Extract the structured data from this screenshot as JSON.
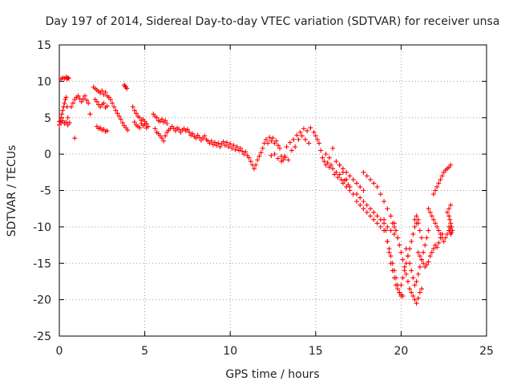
{
  "chart_data": {
    "type": "scatter",
    "title": "Day 197 of 2014, Sidereal Day-to-day VTEC variation (SDTVAR) for receiver unsa",
    "xlabel": "GPS time / hours",
    "ylabel": "SDTVAR / TECUs",
    "xlim": [
      0,
      25
    ],
    "ylim": [
      -25,
      15
    ],
    "xticks": [
      0,
      5,
      10,
      15,
      20,
      25
    ],
    "yticks": [
      -25,
      -20,
      -15,
      -10,
      -5,
      0,
      5,
      10,
      15
    ],
    "xtick_labels": [
      "0",
      "5",
      "10",
      "15",
      "20",
      "25"
    ],
    "ytick_labels": [
      "-25",
      "-20",
      "-15",
      "-10",
      "-5",
      "0",
      "5",
      "10",
      "15"
    ],
    "grid": true,
    "marker": "+",
    "color": "#ff0000",
    "series": [
      {
        "name": "SDTVAR",
        "x": [
          0.0,
          0.05,
          0.1,
          0.15,
          0.2,
          0.25,
          0.3,
          0.35,
          0.4,
          0.45,
          0.5,
          0.1,
          0.2,
          0.3,
          0.4,
          0.45,
          0.5,
          0.55,
          0.0,
          0.1,
          0.2,
          0.3,
          0.4,
          0.5,
          0.6,
          0.7,
          0.8,
          0.9,
          1.0,
          1.1,
          1.2,
          1.3,
          1.4,
          1.5,
          1.6,
          1.7,
          1.8,
          0.9,
          2.0,
          2.1,
          2.2,
          2.3,
          2.4,
          2.5,
          2.6,
          2.7,
          2.8,
          2.9,
          2.1,
          2.2,
          2.3,
          2.4,
          2.5,
          2.6,
          2.7,
          2.8,
          2.2,
          2.3,
          2.4,
          2.5,
          2.6,
          2.7,
          2.8,
          3.0,
          3.1,
          3.2,
          3.3,
          3.4,
          3.5,
          3.6,
          3.7,
          3.8,
          3.9,
          4.0,
          3.8,
          3.85,
          3.9,
          3.95,
          4.3,
          4.4,
          4.5,
          4.6,
          4.7,
          4.8,
          4.9,
          5.0,
          5.1,
          4.4,
          4.5,
          4.6,
          4.7,
          4.8,
          4.9,
          5.0,
          5.1,
          5.2,
          5.5,
          5.6,
          5.7,
          5.8,
          5.9,
          6.0,
          6.1,
          6.2,
          6.3,
          5.6,
          5.7,
          5.8,
          5.9,
          6.0,
          6.1,
          6.2,
          6.3,
          6.4,
          6.5,
          6.6,
          6.7,
          6.8,
          6.9,
          7.0,
          7.1,
          7.2,
          7.3,
          7.4,
          7.5,
          7.6,
          7.7,
          7.8,
          7.9,
          8.0,
          8.1,
          8.2,
          8.3,
          8.4,
          8.5,
          8.6,
          8.7,
          8.8,
          8.9,
          9.0,
          9.1,
          9.2,
          9.3,
          9.4,
          9.5,
          9.6,
          9.7,
          9.8,
          9.9,
          10.0,
          10.1,
          10.2,
          10.3,
          10.4,
          10.5,
          10.6,
          10.7,
          10.8,
          10.9,
          11.0,
          11.1,
          11.2,
          11.3,
          11.4,
          11.5,
          11.6,
          11.7,
          11.8,
          11.9,
          12.0,
          12.1,
          12.2,
          12.3,
          12.4,
          12.5,
          12.6,
          12.7,
          12.8,
          12.9,
          13.0,
          13.1,
          13.2,
          12.4,
          12.6,
          12.8,
          13.0,
          13.2,
          13.4,
          13.6,
          13.8,
          14.0,
          14.2,
          14.4,
          14.6,
          13.3,
          13.5,
          13.7,
          13.9,
          14.1,
          14.3,
          14.5,
          14.7,
          14.9,
          15.0,
          15.1,
          15.2,
          15.3,
          15.4,
          15.5,
          15.6,
          15.7,
          15.8,
          15.9,
          16.0,
          16.1,
          16.2,
          16.3,
          16.4,
          16.5,
          16.6,
          16.7,
          16.8,
          16.9,
          17.0,
          15.6,
          15.8,
          16.0,
          16.2,
          16.4,
          16.6,
          16.8,
          17.0,
          17.2,
          17.4,
          17.6,
          17.8,
          16.4,
          16.6,
          16.8,
          17.0,
          17.2,
          17.4,
          17.6,
          17.8,
          18.0,
          18.2,
          18.4,
          18.6,
          18.8,
          19.0,
          17.8,
          18.0,
          18.2,
          18.4,
          18.6,
          18.8,
          19.0,
          19.2,
          19.4,
          19.6,
          17.4,
          17.6,
          17.8,
          18.0,
          18.2,
          18.4,
          18.6,
          18.8,
          19.0,
          19.2,
          19.4,
          19.6,
          19.8,
          19.0,
          19.1,
          19.2,
          19.3,
          19.4,
          19.5,
          19.6,
          19.7,
          19.8,
          19.9,
          20.0,
          19.2,
          19.3,
          19.4,
          19.5,
          19.6,
          19.7,
          19.8,
          19.9,
          20.0,
          20.1,
          19.5,
          19.6,
          19.7,
          19.8,
          19.9,
          20.0,
          20.1,
          20.2,
          20.3,
          20.4,
          20.5,
          20.6,
          20.7,
          20.8,
          20.9,
          21.0,
          21.1,
          21.2,
          21.0,
          20.9,
          20.8,
          20.7,
          20.6,
          20.5,
          20.4,
          20.3,
          20.2,
          20.1,
          20.0,
          21.0,
          21.1,
          21.2,
          21.3,
          21.4,
          21.5,
          21.6,
          21.7,
          21.8,
          21.9,
          22.0,
          22.1,
          22.2,
          22.3,
          22.4,
          21.6,
          21.7,
          21.8,
          21.9,
          22.0,
          22.1,
          22.2,
          22.3,
          22.4,
          22.5,
          22.6,
          22.7,
          22.8,
          22.9,
          21.9,
          22.0,
          22.1,
          22.2,
          22.3,
          22.4,
          22.5,
          22.6,
          22.7,
          22.8,
          22.9,
          22.8,
          22.85,
          22.9,
          22.95,
          22.8,
          22.85,
          22.9,
          22.95,
          23.0,
          22.7,
          22.8,
          22.9,
          20.3,
          20.4,
          20.5,
          20.6,
          20.7,
          20.8,
          20.9,
          21.0,
          21.1,
          21.2,
          21.3,
          21.4,
          21.5,
          21.6,
          20.8,
          20.9,
          21.0,
          21.1,
          21.2
        ],
        "y": [
          4.0,
          4.5,
          5.0,
          5.5,
          6.0,
          6.5,
          7.0,
          7.5,
          7.8,
          6.5,
          5.0,
          10.3,
          10.5,
          10.4,
          10.6,
          10.3,
          10.5,
          10.4,
          4.5,
          4.3,
          4.6,
          4.2,
          4.4,
          4.0,
          4.3,
          6.5,
          7.0,
          7.5,
          7.8,
          8.0,
          7.6,
          7.2,
          7.6,
          8.0,
          7.4,
          7.0,
          5.5,
          2.2,
          9.2,
          9.0,
          8.8,
          8.6,
          8.4,
          8.7,
          8.2,
          8.5,
          8.0,
          7.8,
          7.5,
          7.2,
          6.8,
          6.5,
          6.8,
          7.0,
          6.4,
          6.6,
          3.8,
          3.5,
          3.6,
          3.3,
          3.4,
          3.1,
          3.2,
          7.5,
          7.0,
          6.5,
          6.0,
          5.6,
          5.2,
          4.8,
          4.3,
          3.9,
          3.6,
          3.3,
          9.5,
          9.3,
          9.2,
          9.0,
          6.5,
          6.0,
          5.6,
          5.2,
          5.0,
          4.6,
          4.8,
          4.5,
          4.2,
          4.4,
          4.0,
          3.8,
          3.6,
          4.2,
          3.9,
          4.1,
          3.6,
          3.8,
          5.5,
          5.2,
          5.0,
          4.6,
          4.5,
          4.8,
          4.4,
          4.6,
          4.2,
          3.5,
          3.0,
          2.8,
          2.5,
          2.2,
          1.8,
          2.5,
          3.0,
          3.3,
          3.5,
          3.8,
          3.5,
          3.2,
          3.6,
          3.4,
          3.0,
          3.3,
          3.5,
          3.2,
          3.4,
          3.0,
          2.6,
          2.8,
          2.4,
          2.2,
          2.6,
          2.3,
          1.9,
          2.2,
          2.5,
          2.0,
          1.8,
          1.5,
          1.8,
          1.3,
          1.6,
          1.2,
          1.5,
          1.0,
          1.4,
          1.7,
          1.2,
          1.6,
          1.0,
          1.4,
          0.8,
          1.2,
          0.6,
          1.0,
          0.5,
          0.8,
          0.4,
          0.0,
          0.3,
          -0.2,
          -0.5,
          -1.0,
          -1.5,
          -2.0,
          -1.5,
          -0.8,
          -0.3,
          0.2,
          0.8,
          1.5,
          2.0,
          1.5,
          2.3,
          1.8,
          2.2,
          1.5,
          1.8,
          1.2,
          0.8,
          -0.3,
          -0.8,
          -0.5,
          -0.2,
          0.0,
          -0.6,
          -1.0,
          -0.3,
          -0.8,
          0.5,
          1.0,
          2.0,
          2.5,
          2.0,
          1.5,
          1.0,
          1.6,
          2.0,
          2.6,
          3.0,
          3.5,
          3.2,
          3.6,
          3.0,
          2.5,
          2.0,
          1.5,
          0.5,
          -0.5,
          -1.0,
          -1.5,
          -1.2,
          -1.8,
          -1.5,
          -2.0,
          -2.8,
          -2.5,
          -3.2,
          -2.8,
          -3.5,
          -4.0,
          -3.6,
          -4.5,
          -4.2,
          -5.0,
          0.0,
          -0.5,
          0.8,
          -1.0,
          -1.5,
          -2.0,
          -2.5,
          -3.0,
          -3.5,
          -4.0,
          -4.5,
          -5.0,
          -1.5,
          -2.5,
          -3.5,
          -4.5,
          -5.5,
          -6.5,
          -7.0,
          -7.5,
          -8.0,
          -8.5,
          -9.0,
          -9.5,
          -10.0,
          -10.5,
          -2.5,
          -3.0,
          -3.5,
          -4.0,
          -4.5,
          -5.5,
          -6.5,
          -7.5,
          -8.5,
          -9.5,
          -5.5,
          -6.0,
          -6.5,
          -7.0,
          -7.5,
          -8.0,
          -8.5,
          -9.0,
          -9.5,
          -10.0,
          -10.5,
          -11.0,
          -11.5,
          -9.0,
          -10.5,
          -12.0,
          -13.5,
          -15.0,
          -16.0,
          -17.0,
          -18.0,
          -18.5,
          -19.0,
          -19.5,
          -12.0,
          -13.0,
          -14.0,
          -15.0,
          -16.0,
          -17.0,
          -18.0,
          -19.0,
          -19.3,
          -19.5,
          -9.5,
          -10.0,
          -10.5,
          -11.5,
          -12.5,
          -13.5,
          -14.5,
          -15.5,
          -16.5,
          -17.5,
          -18.5,
          -19.0,
          -19.5,
          -20.0,
          -20.5,
          -19.8,
          -19.0,
          -18.5,
          -9.0,
          -9.5,
          -10.0,
          -11.0,
          -12.0,
          -13.0,
          -14.0,
          -15.0,
          -16.0,
          -17.0,
          -18.0,
          -13.5,
          -14.0,
          -14.5,
          -15.0,
          -15.5,
          -15.2,
          -14.8,
          -14.0,
          -13.5,
          -13.0,
          -12.5,
          -12.8,
          -12.2,
          -11.5,
          -11.0,
          -7.5,
          -8.0,
          -8.5,
          -9.0,
          -9.5,
          -10.0,
          -10.5,
          -11.0,
          -11.5,
          -12.0,
          -11.5,
          -11.0,
          -10.5,
          -10.0,
          -5.5,
          -5.0,
          -4.5,
          -4.0,
          -3.5,
          -3.0,
          -2.5,
          -2.2,
          -2.0,
          -1.8,
          -1.5,
          -8.5,
          -9.0,
          -9.5,
          -10.0,
          -10.0,
          -10.5,
          -11.0,
          -10.8,
          -10.5,
          -8.0,
          -7.5,
          -7.0,
          -13.0,
          -14.0,
          -15.0,
          -16.0,
          -17.0,
          -18.0,
          -17.5,
          -16.5,
          -15.5,
          -14.5,
          -13.5,
          -12.5,
          -11.5,
          -10.5,
          -9.0,
          -8.5,
          -9.5,
          -10.5,
          -11.5
        ]
      }
    ]
  }
}
